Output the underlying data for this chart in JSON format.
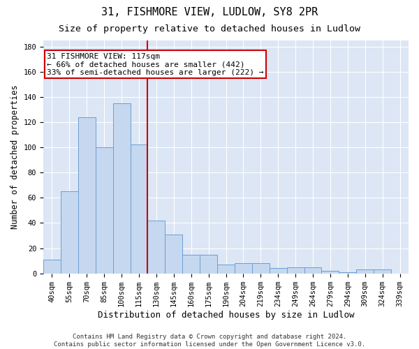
{
  "title1": "31, FISHMORE VIEW, LUDLOW, SY8 2PR",
  "title2": "Size of property relative to detached houses in Ludlow",
  "xlabel": "Distribution of detached houses by size in Ludlow",
  "ylabel": "Number of detached properties",
  "categories": [
    "40sqm",
    "55sqm",
    "70sqm",
    "85sqm",
    "100sqm",
    "115sqm",
    "130sqm",
    "145sqm",
    "160sqm",
    "175sqm",
    "190sqm",
    "204sqm",
    "219sqm",
    "234sqm",
    "249sqm",
    "264sqm",
    "279sqm",
    "294sqm",
    "309sqm",
    "324sqm",
    "339sqm"
  ],
  "values": [
    11,
    65,
    124,
    100,
    135,
    102,
    42,
    31,
    15,
    15,
    7,
    8,
    8,
    4,
    5,
    5,
    2,
    1,
    3,
    3,
    0
  ],
  "bar_color": "#c5d8f0",
  "bar_edge_color": "#6b9fd4",
  "bg_color": "#dce6f5",
  "grid_color": "#ffffff",
  "vline_x": 5.5,
  "vline_color": "#cc0000",
  "annotation_line1": "31 FISHMORE VIEW: 117sqm",
  "annotation_line2": "← 66% of detached houses are smaller (442)",
  "annotation_line3": "33% of semi-detached houses are larger (222) →",
  "ylim": [
    0,
    185
  ],
  "yticks": [
    0,
    20,
    40,
    60,
    80,
    100,
    120,
    140,
    160,
    180
  ],
  "footnote": "Contains HM Land Registry data © Crown copyright and database right 2024.\nContains public sector information licensed under the Open Government Licence v3.0.",
  "title1_fontsize": 11,
  "title2_fontsize": 9.5,
  "xlabel_fontsize": 9,
  "ylabel_fontsize": 8.5,
  "tick_fontsize": 7.5,
  "annotation_fontsize": 8,
  "footnote_fontsize": 6.5
}
